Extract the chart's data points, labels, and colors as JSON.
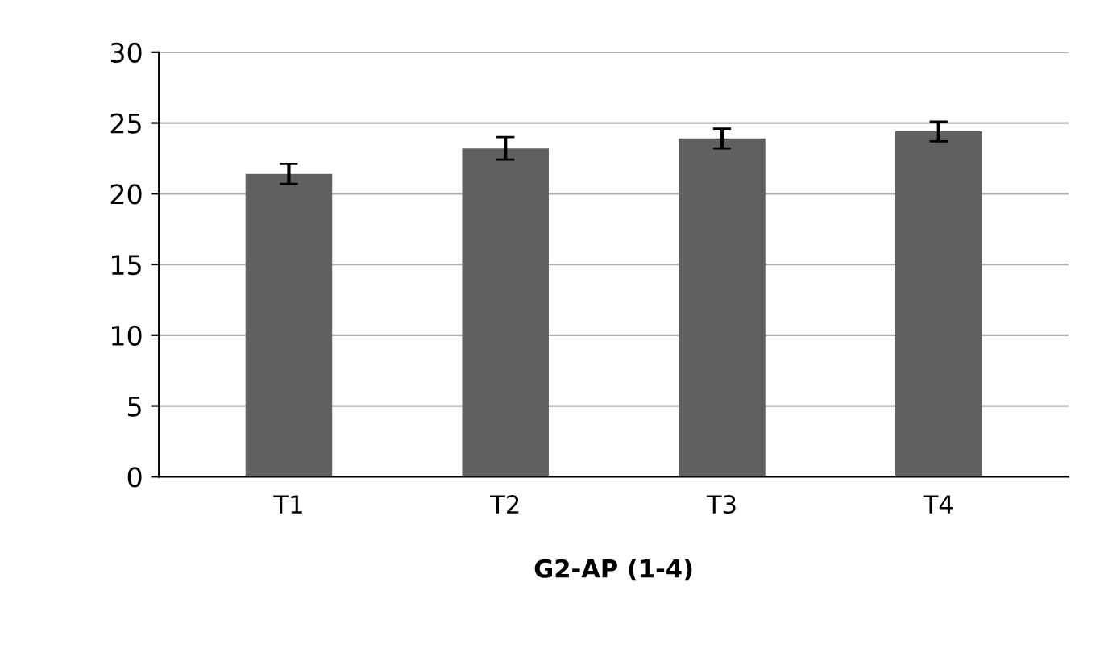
{
  "chart_data": {
    "type": "bar",
    "xlabel": "G2-AP (1-4)",
    "categories": [
      "T1",
      "T2",
      "T3",
      "T4"
    ],
    "values": [
      21.4,
      23.2,
      23.9,
      24.4
    ],
    "errors": [
      0.7,
      0.8,
      0.7,
      0.7
    ],
    "color": "#606060",
    "ylim": [
      0,
      30
    ],
    "yticks": [
      0,
      5,
      10,
      15,
      20,
      25,
      30
    ],
    "grid": "y",
    "legend": false
  }
}
